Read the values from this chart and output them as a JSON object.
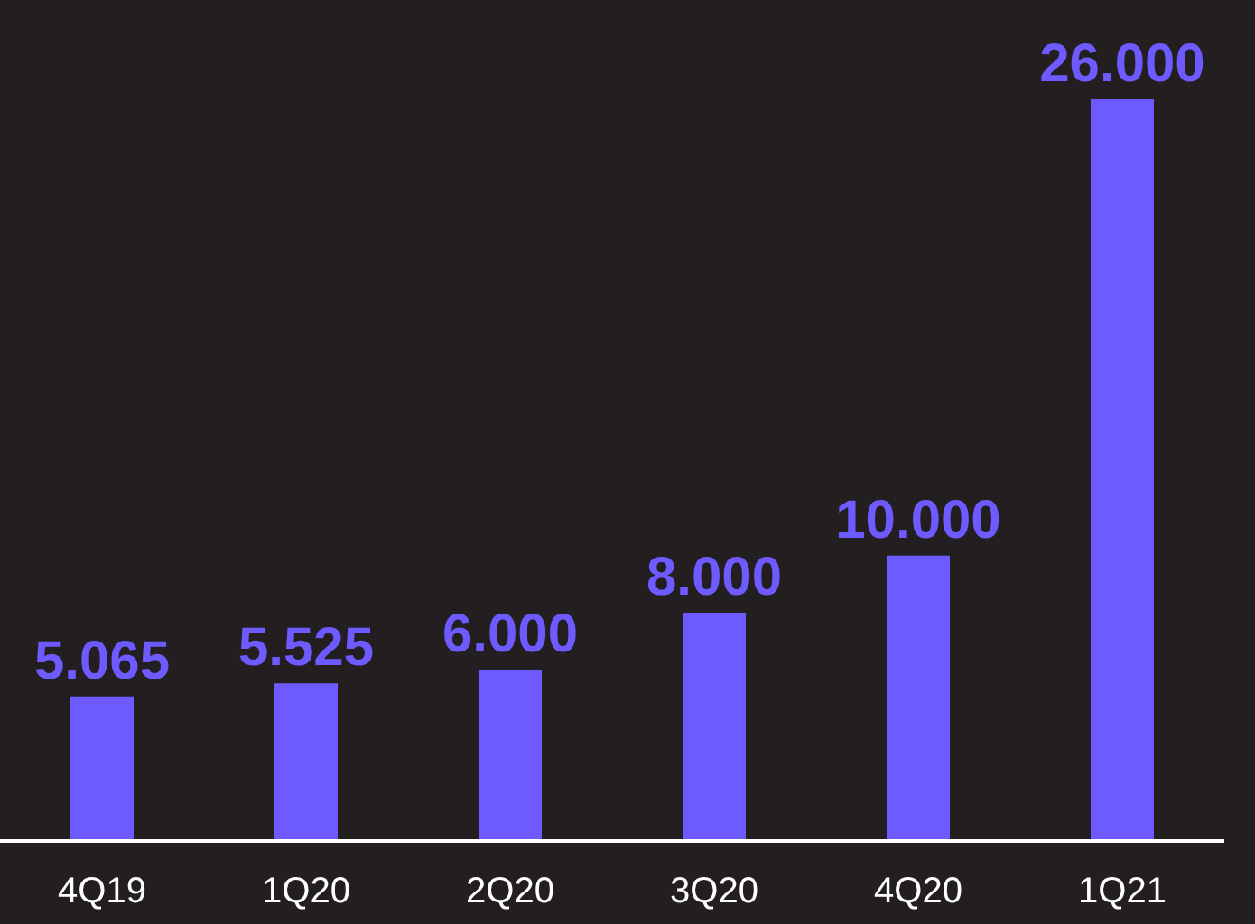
{
  "chart_data": {
    "type": "bar",
    "categories": [
      "4Q19",
      "1Q20",
      "2Q20",
      "3Q20",
      "4Q20",
      "1Q21"
    ],
    "values": [
      5065,
      5525,
      6000,
      8000,
      10000,
      26000
    ],
    "value_labels": [
      "5.065",
      "5.525",
      "6.000",
      "8.000",
      "10.000",
      "26.000"
    ],
    "color": "#6e5bff"
  }
}
